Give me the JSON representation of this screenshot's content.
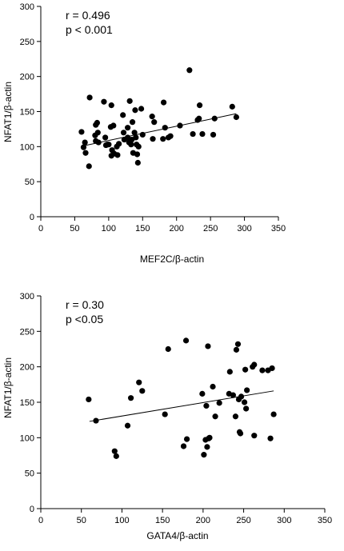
{
  "chart_data": [
    {
      "type": "scatter",
      "xlabel": "MEF2C/β-actin",
      "ylabel": "NFAT1/β-actin",
      "xlim": [
        0,
        350
      ],
      "ylim": [
        0,
        300
      ],
      "xticks": [
        0,
        50,
        100,
        150,
        200,
        250,
        300,
        350
      ],
      "yticks": [
        0,
        50,
        100,
        150,
        200,
        250,
        300
      ],
      "annotations": [
        "r = 0.496",
        "p < 0.001"
      ],
      "trendline": {
        "x": [
          62,
          288
        ],
        "y": [
          101,
          147
        ]
      },
      "points": [
        {
          "x": 60,
          "y": 121
        },
        {
          "x": 63,
          "y": 99
        },
        {
          "x": 65,
          "y": 106
        },
        {
          "x": 66,
          "y": 91
        },
        {
          "x": 71,
          "y": 72
        },
        {
          "x": 72,
          "y": 170
        },
        {
          "x": 80,
          "y": 116
        },
        {
          "x": 81,
          "y": 108
        },
        {
          "x": 81,
          "y": 131
        },
        {
          "x": 83,
          "y": 134
        },
        {
          "x": 84,
          "y": 120
        },
        {
          "x": 85,
          "y": 106
        },
        {
          "x": 93,
          "y": 164
        },
        {
          "x": 95,
          "y": 113
        },
        {
          "x": 96,
          "y": 102
        },
        {
          "x": 98,
          "y": 103
        },
        {
          "x": 100,
          "y": 103
        },
        {
          "x": 103,
          "y": 128
        },
        {
          "x": 104,
          "y": 87
        },
        {
          "x": 104,
          "y": 159
        },
        {
          "x": 105,
          "y": 95
        },
        {
          "x": 107,
          "y": 130
        },
        {
          "x": 108,
          "y": 90
        },
        {
          "x": 112,
          "y": 100
        },
        {
          "x": 113,
          "y": 88
        },
        {
          "x": 115,
          "y": 104
        },
        {
          "x": 121,
          "y": 145
        },
        {
          "x": 122,
          "y": 120
        },
        {
          "x": 123,
          "y": 110
        },
        {
          "x": 128,
          "y": 113
        },
        {
          "x": 128,
          "y": 127
        },
        {
          "x": 130,
          "y": 106
        },
        {
          "x": 131,
          "y": 165
        },
        {
          "x": 133,
          "y": 103
        },
        {
          "x": 134,
          "y": 110
        },
        {
          "x": 135,
          "y": 135
        },
        {
          "x": 136,
          "y": 91
        },
        {
          "x": 138,
          "y": 120
        },
        {
          "x": 139,
          "y": 152
        },
        {
          "x": 140,
          "y": 113
        },
        {
          "x": 141,
          "y": 103
        },
        {
          "x": 142,
          "y": 89
        },
        {
          "x": 143,
          "y": 77
        },
        {
          "x": 144,
          "y": 100
        },
        {
          "x": 148,
          "y": 154
        },
        {
          "x": 150,
          "y": 117
        },
        {
          "x": 164,
          "y": 143
        },
        {
          "x": 165,
          "y": 111
        },
        {
          "x": 167,
          "y": 135
        },
        {
          "x": 180,
          "y": 111
        },
        {
          "x": 181,
          "y": 163
        },
        {
          "x": 183,
          "y": 127
        },
        {
          "x": 188,
          "y": 113
        },
        {
          "x": 191,
          "y": 115
        },
        {
          "x": 205,
          "y": 130
        },
        {
          "x": 219,
          "y": 209
        },
        {
          "x": 224,
          "y": 118
        },
        {
          "x": 231,
          "y": 138
        },
        {
          "x": 233,
          "y": 140
        },
        {
          "x": 234,
          "y": 159
        },
        {
          "x": 238,
          "y": 118
        },
        {
          "x": 254,
          "y": 117
        },
        {
          "x": 256,
          "y": 140
        },
        {
          "x": 282,
          "y": 157
        },
        {
          "x": 288,
          "y": 142
        }
      ]
    },
    {
      "type": "scatter",
      "xlabel": "GATA4/β-actin",
      "ylabel": "NFAT1/β-actin",
      "xlim": [
        0,
        350
      ],
      "ylim": [
        0,
        300
      ],
      "xticks": [
        0,
        50,
        100,
        150,
        200,
        250,
        300,
        350
      ],
      "yticks": [
        0,
        50,
        100,
        150,
        200,
        250,
        300
      ],
      "annotations": [
        "r = 0.30",
        "p <0.05"
      ],
      "trendline": {
        "x": [
          60,
          287
        ],
        "y": [
          123,
          166
        ]
      },
      "points": [
        {
          "x": 59,
          "y": 154
        },
        {
          "x": 68,
          "y": 124
        },
        {
          "x": 91,
          "y": 81
        },
        {
          "x": 93,
          "y": 74
        },
        {
          "x": 107,
          "y": 117
        },
        {
          "x": 111,
          "y": 156
        },
        {
          "x": 121,
          "y": 178
        },
        {
          "x": 125,
          "y": 166
        },
        {
          "x": 153,
          "y": 133
        },
        {
          "x": 157,
          "y": 225
        },
        {
          "x": 176,
          "y": 88
        },
        {
          "x": 179,
          "y": 237
        },
        {
          "x": 180,
          "y": 98
        },
        {
          "x": 199,
          "y": 162
        },
        {
          "x": 201,
          "y": 76
        },
        {
          "x": 203,
          "y": 97
        },
        {
          "x": 204,
          "y": 145
        },
        {
          "x": 205,
          "y": 87
        },
        {
          "x": 206,
          "y": 229
        },
        {
          "x": 207,
          "y": 99
        },
        {
          "x": 208,
          "y": 100
        },
        {
          "x": 212,
          "y": 172
        },
        {
          "x": 215,
          "y": 130
        },
        {
          "x": 220,
          "y": 149
        },
        {
          "x": 232,
          "y": 162
        },
        {
          "x": 233,
          "y": 193
        },
        {
          "x": 237,
          "y": 160
        },
        {
          "x": 240,
          "y": 130
        },
        {
          "x": 241,
          "y": 224
        },
        {
          "x": 243,
          "y": 232
        },
        {
          "x": 244,
          "y": 154
        },
        {
          "x": 245,
          "y": 108
        },
        {
          "x": 246,
          "y": 106
        },
        {
          "x": 247,
          "y": 158
        },
        {
          "x": 251,
          "y": 150
        },
        {
          "x": 252,
          "y": 196
        },
        {
          "x": 253,
          "y": 141
        },
        {
          "x": 254,
          "y": 167
        },
        {
          "x": 261,
          "y": 200
        },
        {
          "x": 263,
          "y": 203
        },
        {
          "x": 263,
          "y": 103
        },
        {
          "x": 273,
          "y": 195
        },
        {
          "x": 280,
          "y": 195
        },
        {
          "x": 283,
          "y": 99
        },
        {
          "x": 285,
          "y": 198
        },
        {
          "x": 287,
          "y": 133
        }
      ]
    }
  ]
}
